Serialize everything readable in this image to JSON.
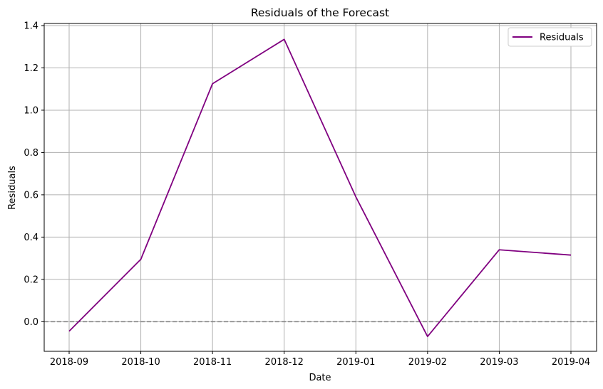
{
  "chart_data": {
    "type": "line",
    "title": "Residuals of the Forecast",
    "xlabel": "Date",
    "ylabel": "Residuals",
    "x": [
      "2018-09",
      "2018-10",
      "2018-11",
      "2018-12",
      "2019-01",
      "2019-02",
      "2019-03",
      "2019-04"
    ],
    "series": [
      {
        "name": "Residuals",
        "color": "#800080",
        "values": [
          -0.045,
          0.295,
          1.125,
          1.335,
          0.59,
          -0.07,
          0.34,
          0.315
        ]
      }
    ],
    "ylim": [
      -0.14,
      1.41
    ],
    "yticks": [
      "0.0",
      "0.2",
      "0.4",
      "0.6",
      "0.8",
      "1.0",
      "1.2",
      "1.4"
    ],
    "ytick_values": [
      0.0,
      0.2,
      0.4,
      0.6,
      0.8,
      1.0,
      1.2,
      1.4
    ],
    "reference_line": {
      "y": 0,
      "color": "#808080",
      "style": "dashed"
    },
    "grid": true,
    "legend_position": "top-right"
  }
}
